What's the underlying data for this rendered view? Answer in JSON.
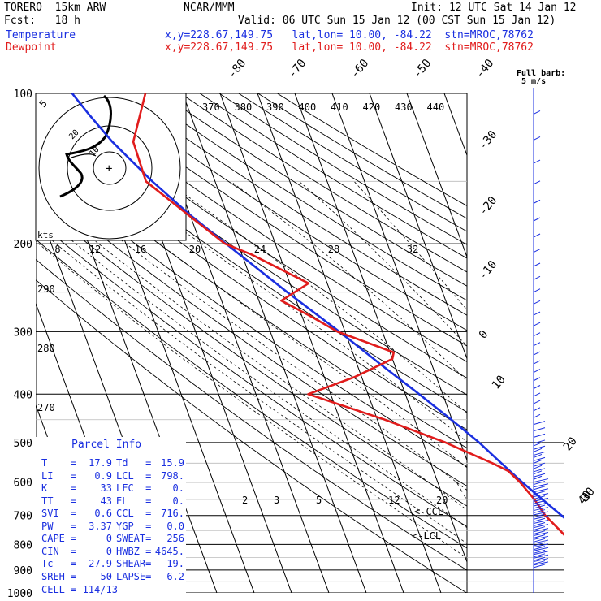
{
  "header": {
    "model": "TORERO  15km ARW",
    "init": "Init: 12 UTC Sat 14 Jan 12",
    "org": "NCAR/MMM",
    "fcst": "Fcst:   18 h",
    "valid": "Valid: 06 UTC Sun 15 Jan 12 (00 CST Sun 15 Jan 12)",
    "temp_label": "Temperature",
    "temp_info": "x,y=228.67,149.75   lat,lon= 10.00, -84.22  stn=MROC,78762",
    "dew_label": "Dewpoint",
    "dew_info": "x,y=228.67,149.75   lat,lon= 10.00, -84.22  stn=MROC,78762",
    "barb_legend_line1": "Full barb:",
    "barb_legend_line2": "5 m/s"
  },
  "colors": {
    "temperature": "#1a2fe0",
    "dewpoint": "#e11c1c",
    "grid": "#000000",
    "dry_adiabat": "#000000"
  },
  "chart_data": {
    "type": "line",
    "subtype": "skew-T log-P sounding",
    "pressure_axis": {
      "label_ticks": [
        "100",
        "200",
        "300",
        "400",
        "500",
        "600",
        "700",
        "800",
        "900",
        "1000"
      ],
      "scale": "log"
    },
    "isotherm_labels_top": [
      "-80",
      "-70",
      "-60",
      "-50",
      "-40"
    ],
    "isotherm_labels_right": [
      "-30",
      "-20",
      "-10",
      "0",
      "10",
      "20",
      "30",
      "40"
    ],
    "theta_e_labels": [
      "370",
      "380",
      "390",
      "400",
      "410",
      "420",
      "430",
      "440"
    ],
    "theta_labels_left": [
      "290",
      "280",
      "270"
    ],
    "mixing_ratio_labels": [
      "2",
      "3",
      "5",
      "12",
      "20"
    ],
    "lcl_marker": "LCL",
    "ccl_marker": "<-CCL",
    "series": [
      {
        "name": "Temperature",
        "color": "#1a2fe0",
        "p": [
          880,
          850,
          800,
          750,
          700,
          650,
          600,
          550,
          500,
          450,
          400,
          350,
          300,
          250,
          200,
          175,
          150,
          125,
          110,
          100
        ],
        "t": [
          17.9,
          17.5,
          16.2,
          13.0,
          9.9,
          6.3,
          2.6,
          -1.1,
          -5.0,
          -10.2,
          -16.3,
          -23.5,
          -31.5,
          -41.6,
          -53.2,
          -60.0,
          -66.8,
          -73.6,
          -77.2,
          -79.6
        ]
      },
      {
        "name": "Dewpoint",
        "color": "#e11c1c",
        "p": [
          880,
          860,
          850,
          840,
          800,
          750,
          700,
          650,
          600,
          570,
          550,
          500,
          450,
          400,
          370,
          340,
          330,
          300,
          280,
          260,
          240,
          210,
          200,
          175,
          150,
          125,
          100
        ],
        "td": [
          15.9,
          15.7,
          14.8,
          13.5,
          10.2,
          8.0,
          5.5,
          4.2,
          2.0,
          0.0,
          -3.5,
          -14.0,
          -28.0,
          -46.0,
          -32.0,
          -20.0,
          -19.0,
          -32.0,
          -37.5,
          -44.0,
          -35.0,
          -47.5,
          -53.5,
          -60.5,
          -68.5,
          -68.0,
          -60.0
        ]
      }
    ]
  },
  "wind_inset": {
    "rings": [
      "10",
      "20"
    ],
    "unit": "kts",
    "center_marker": "+",
    "axis_labels": [
      "8",
      "12",
      "16",
      "20",
      "24",
      "28",
      "32"
    ]
  },
  "parcel": {
    "title": "Parcel Info",
    "rows": [
      {
        "k1": "T",
        "v1": "17.9",
        "k2": "Td",
        "v2": "15.9"
      },
      {
        "k1": "LI",
        "v1": "0.9",
        "k2": "LCL",
        "v2": "798."
      },
      {
        "k1": "K",
        "v1": "33",
        "k2": "LFC",
        "v2": "0."
      },
      {
        "k1": "TT",
        "v1": "43",
        "k2": "EL",
        "v2": "0."
      },
      {
        "k1": "SVI",
        "v1": "0.6",
        "k2": "CCL",
        "v2": "716."
      },
      {
        "k1": "PW",
        "v1": "3.37",
        "k2": "YGP",
        "v2": "0.0"
      },
      {
        "k1": "CAPE",
        "v1": "0",
        "k2": "SWEAT",
        "v2": "256"
      },
      {
        "k1": "CIN",
        "v1": "0",
        "k2": "HWBZ",
        "v2": "4645."
      },
      {
        "k1": "Tc",
        "v1": "27.9",
        "k2": "SHEAR",
        "v2": "19."
      },
      {
        "k1": "SREH",
        "v1": "50",
        "k2": "LAPSE",
        "v2": "6.2"
      }
    ],
    "cell": "CELL = 114/13"
  }
}
